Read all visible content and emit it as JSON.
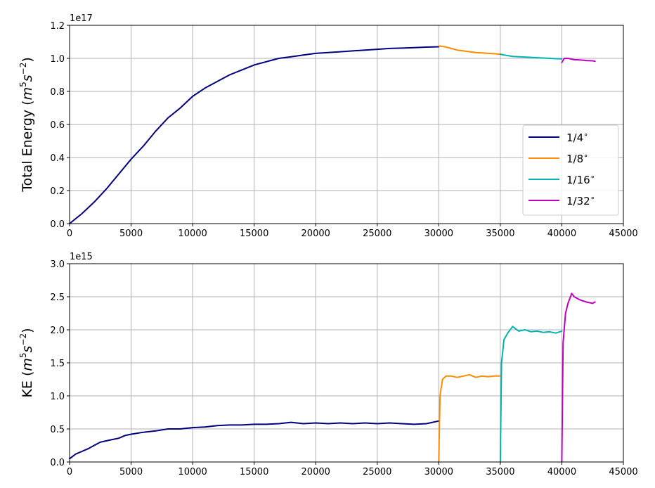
{
  "chart_data": [
    {
      "type": "line",
      "ylabel": "Total Energy",
      "yunit_base": "m",
      "yunit_exp1": "5",
      "yunit_mid": "s",
      "yunit_exp2": "−2",
      "offset_text": "1e17",
      "xlim": [
        0,
        45000
      ],
      "ylim": [
        0,
        1.2
      ],
      "xticks": [
        "0",
        "5000",
        "10000",
        "15000",
        "20000",
        "25000",
        "30000",
        "35000",
        "40000",
        "45000"
      ],
      "yticks": [
        "0.0",
        "0.2",
        "0.4",
        "0.6",
        "0.8",
        "1.0",
        "1.2"
      ],
      "grid": true,
      "legend_position": "lower-right",
      "series": [
        {
          "name": "1/4",
          "color": "#000080",
          "x": [
            0,
            1000,
            2000,
            3000,
            4000,
            5000,
            6000,
            7000,
            8000,
            9000,
            10000,
            11000,
            12000,
            13000,
            14000,
            15000,
            16000,
            17000,
            18000,
            19000,
            20000,
            21000,
            22000,
            23000,
            24000,
            25000,
            26000,
            27000,
            28000,
            29000,
            30000
          ],
          "y": [
            0.0,
            0.06,
            0.13,
            0.21,
            0.3,
            0.39,
            0.47,
            0.56,
            0.64,
            0.7,
            0.77,
            0.82,
            0.86,
            0.9,
            0.93,
            0.96,
            0.98,
            1.0,
            1.01,
            1.02,
            1.03,
            1.035,
            1.04,
            1.045,
            1.05,
            1.055,
            1.06,
            1.062,
            1.065,
            1.068,
            1.07
          ]
        },
        {
          "name": "1/8",
          "color": "#ff8c00",
          "x": [
            30000,
            30500,
            31000,
            31500,
            32000,
            32500,
            33000,
            33500,
            34000,
            34500,
            35000
          ],
          "y": [
            1.075,
            1.07,
            1.06,
            1.05,
            1.045,
            1.04,
            1.035,
            1.033,
            1.03,
            1.028,
            1.025
          ]
        },
        {
          "name": "1/16",
          "color": "#00b3b3",
          "x": [
            35000,
            35500,
            36000,
            36500,
            37000,
            37500,
            38000,
            38500,
            39000,
            39500,
            40000
          ],
          "y": [
            1.025,
            1.018,
            1.012,
            1.01,
            1.008,
            1.006,
            1.004,
            1.002,
            1.0,
            0.998,
            0.997
          ]
        },
        {
          "name": "1/32",
          "color": "#bf00bf",
          "x": [
            40000,
            40200,
            40500,
            41000,
            41500,
            42000,
            42500,
            42700
          ],
          "y": [
            0.975,
            1.0,
            1.0,
            0.992,
            0.99,
            0.987,
            0.985,
            0.982
          ]
        }
      ]
    },
    {
      "type": "line",
      "ylabel": "KE",
      "yunit_base": "m",
      "yunit_exp1": "5",
      "yunit_mid": "s",
      "yunit_exp2": "−2",
      "offset_text": "1e15",
      "xlim": [
        0,
        45000
      ],
      "ylim": [
        0,
        3.0
      ],
      "xticks": [
        "0",
        "5000",
        "10000",
        "15000",
        "20000",
        "25000",
        "30000",
        "35000",
        "40000",
        "45000"
      ],
      "yticks": [
        "0.0",
        "0.5",
        "1.0",
        "1.5",
        "2.0",
        "2.5",
        "3.0"
      ],
      "grid": true,
      "series": [
        {
          "name": "1/4",
          "color": "#000080",
          "x": [
            0,
            500,
            1000,
            1500,
            2000,
            2500,
            3000,
            3500,
            4000,
            4500,
            5000,
            6000,
            7000,
            8000,
            9000,
            10000,
            11000,
            12000,
            13000,
            14000,
            15000,
            16000,
            17000,
            18000,
            19000,
            20000,
            21000,
            22000,
            23000,
            24000,
            25000,
            26000,
            27000,
            28000,
            29000,
            30000
          ],
          "y": [
            0.05,
            0.12,
            0.16,
            0.2,
            0.25,
            0.3,
            0.32,
            0.34,
            0.36,
            0.4,
            0.42,
            0.45,
            0.47,
            0.5,
            0.5,
            0.52,
            0.53,
            0.55,
            0.56,
            0.56,
            0.57,
            0.57,
            0.58,
            0.6,
            0.58,
            0.59,
            0.58,
            0.59,
            0.58,
            0.59,
            0.58,
            0.59,
            0.58,
            0.57,
            0.58,
            0.62
          ]
        },
        {
          "name": "1/8",
          "color": "#ff8c00",
          "x": [
            30000,
            30100,
            30300,
            30600,
            31000,
            31500,
            32000,
            32500,
            33000,
            33500,
            34000,
            34500,
            35000
          ],
          "y": [
            0.0,
            1.0,
            1.25,
            1.3,
            1.3,
            1.28,
            1.3,
            1.32,
            1.28,
            1.3,
            1.29,
            1.3,
            1.3
          ]
        },
        {
          "name": "1/16",
          "color": "#00b3b3",
          "x": [
            35000,
            35100,
            35300,
            35600,
            36000,
            36500,
            37000,
            37500,
            38000,
            38500,
            39000,
            39500,
            40000
          ],
          "y": [
            0.0,
            1.5,
            1.85,
            1.95,
            2.05,
            1.98,
            2.0,
            1.97,
            1.98,
            1.96,
            1.97,
            1.95,
            1.98
          ]
        },
        {
          "name": "1/32",
          "color": "#bf00bf",
          "x": [
            40000,
            40100,
            40300,
            40500,
            40800,
            41000,
            41500,
            42000,
            42500,
            42700
          ],
          "y": [
            0.0,
            1.8,
            2.25,
            2.4,
            2.55,
            2.5,
            2.45,
            2.42,
            2.4,
            2.42
          ]
        }
      ]
    }
  ]
}
